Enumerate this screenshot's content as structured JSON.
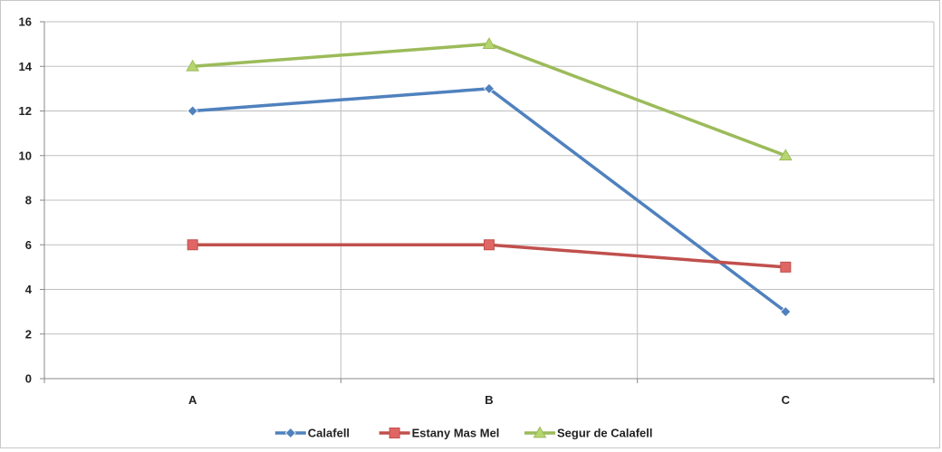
{
  "chart_data": {
    "type": "line",
    "categories": [
      "A",
      "B",
      "C"
    ],
    "series": [
      {
        "name": "Calafell",
        "values": [
          12,
          13,
          3
        ],
        "color": "#4f81bd",
        "marker": "diamond"
      },
      {
        "name": "Estany Mas Mel",
        "values": [
          6,
          6,
          5
        ],
        "color": "#c0504d",
        "marker": "square"
      },
      {
        "name": "Segur de Calafell",
        "values": [
          14,
          15,
          10
        ],
        "color": "#9bbb59",
        "marker": "triangle"
      }
    ],
    "ylim": [
      0,
      16
    ],
    "yticks": [
      0,
      2,
      4,
      6,
      8,
      10,
      12,
      14,
      16
    ],
    "grid": true,
    "legend": "bottom"
  }
}
